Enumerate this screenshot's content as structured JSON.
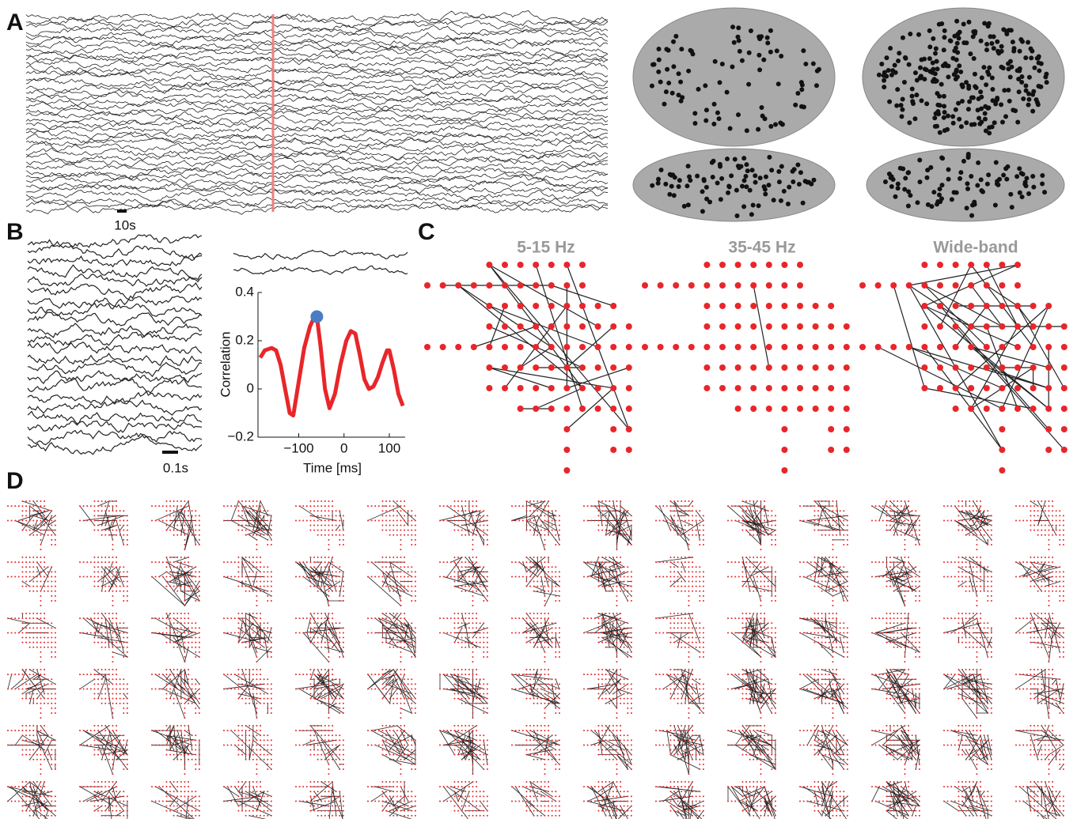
{
  "panel_labels": [
    "A",
    "B",
    "C",
    "D"
  ],
  "scale_bars": [
    "10s",
    "0.1s"
  ],
  "network_titles": [
    "5-15 Hz",
    "35-45 Hz",
    "Wide-band"
  ],
  "chart_data": {
    "type": "line",
    "xlabel": "Time [ms]",
    "ylabel": "Correlation",
    "x": [
      -185,
      -175,
      -160,
      -150,
      -140,
      -130,
      -120,
      -112,
      -100,
      -88,
      -75,
      -65,
      -60,
      -52,
      -42,
      -32,
      -20,
      -8,
      5,
      15,
      25,
      35,
      45,
      55,
      65,
      75,
      85,
      95,
      100,
      110,
      120,
      130
    ],
    "values": [
      0.13,
      0.16,
      0.17,
      0.16,
      0.1,
      0.0,
      -0.1,
      -0.11,
      0.03,
      0.17,
      0.26,
      0.3,
      0.3,
      0.18,
      0.0,
      -0.08,
      -0.02,
      0.1,
      0.2,
      0.24,
      0.23,
      0.14,
      0.04,
      0.0,
      0.01,
      0.05,
      0.11,
      0.16,
      0.16,
      0.08,
      -0.02,
      -0.07
    ],
    "color": "#e8262a",
    "peak": {
      "x": -60,
      "y": 0.3,
      "color": "#4a7cc4"
    },
    "xlim": [
      -190,
      135
    ],
    "ylim": [
      -0.2,
      0.4
    ],
    "xticks": [
      {
        "value": -100,
        "label": "−100"
      },
      0,
      100
    ],
    "yticks": [
      0.4,
      0.2,
      0,
      {
        "value": -0.2,
        "label": "−0.2"
      }
    ]
  }
}
